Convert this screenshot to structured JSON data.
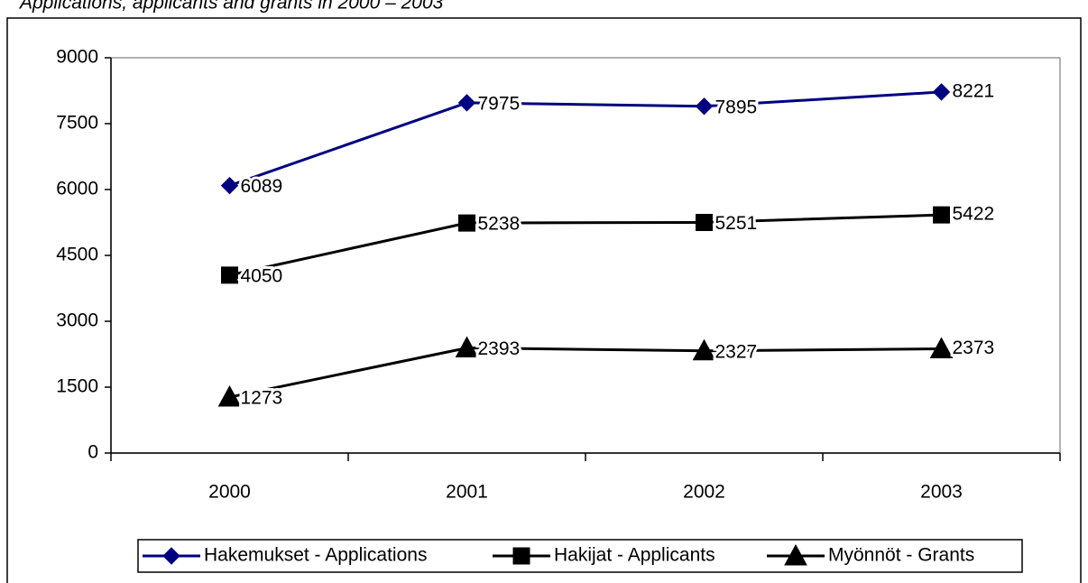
{
  "chart_data": {
    "type": "line",
    "title": "Applications, applicants and grants in 2000 – 2003",
    "categories": [
      "2000",
      "2001",
      "2002",
      "2003"
    ],
    "series": [
      {
        "name": "Hakemukset - Applications",
        "color": "#000080",
        "marker": "diamond",
        "values": [
          6089,
          7975,
          7895,
          8221
        ]
      },
      {
        "name": "Hakijat - Applicants",
        "color": "#000000",
        "marker": "square",
        "values": [
          4050,
          5238,
          5251,
          5422
        ]
      },
      {
        "name": "Myönnöt - Grants",
        "color": "#000000",
        "marker": "triangle",
        "values": [
          1273,
          2393,
          2327,
          2373
        ]
      }
    ],
    "ylim": [
      0,
      9000
    ],
    "yticks": [
      0,
      1500,
      3000,
      4500,
      6000,
      7500,
      9000
    ],
    "legend": "bottom"
  }
}
